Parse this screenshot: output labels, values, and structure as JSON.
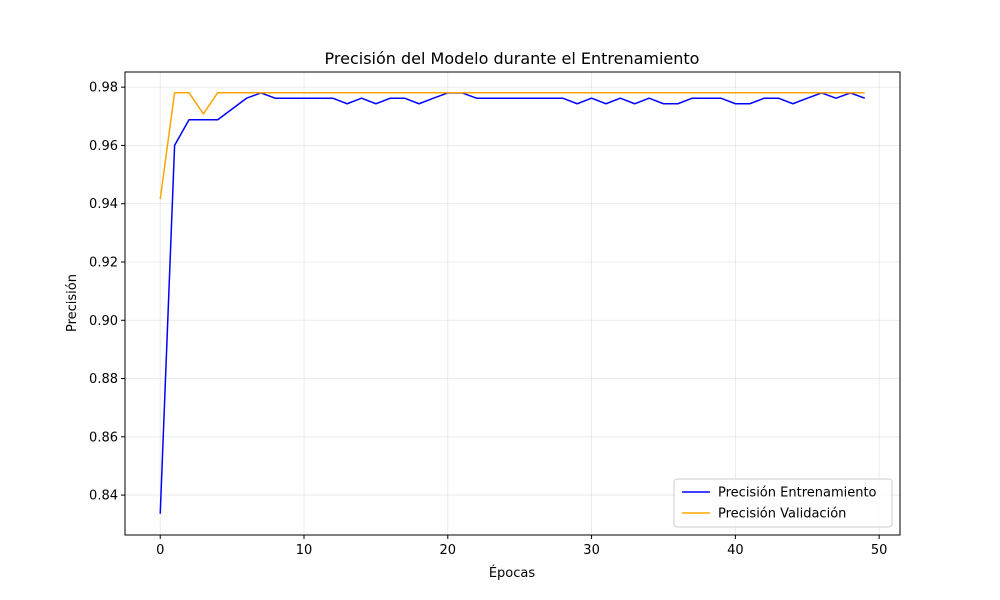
{
  "chart_data": {
    "type": "line",
    "title": "Precisión del Modelo durante el Entrenamiento",
    "xlabel": "Épocas",
    "ylabel": "Precisión",
    "xlim": [
      -2.45,
      51.45
    ],
    "ylim": [
      0.8263,
      0.9852
    ],
    "xticks": [
      0,
      10,
      20,
      30,
      40,
      50
    ],
    "yticks": [
      0.84,
      0.86,
      0.88,
      0.9,
      0.92,
      0.94,
      0.96,
      0.98
    ],
    "xtick_labels": [
      "0",
      "10",
      "20",
      "30",
      "40",
      "50"
    ],
    "ytick_labels": [
      "0.84",
      "0.86",
      "0.88",
      "0.90",
      "0.92",
      "0.94",
      "0.96",
      "0.98"
    ],
    "grid": true,
    "legend_position": "lower-right",
    "x": [
      0,
      1,
      2,
      3,
      4,
      5,
      6,
      7,
      8,
      9,
      10,
      11,
      12,
      13,
      14,
      15,
      16,
      17,
      18,
      19,
      20,
      21,
      22,
      23,
      24,
      25,
      26,
      27,
      28,
      29,
      30,
      31,
      32,
      33,
      34,
      35,
      36,
      37,
      38,
      39,
      40,
      41,
      42,
      43,
      44,
      45,
      46,
      47,
      48,
      49
    ],
    "series": [
      {
        "name": "Precisión Entrenamiento",
        "color": "#0000ff",
        "values": [
          0.8336,
          0.96,
          0.9688,
          0.9688,
          0.9688,
          0.9725,
          0.9762,
          0.978,
          0.9762,
          0.9762,
          0.9762,
          0.9762,
          0.9762,
          0.9743,
          0.9762,
          0.9743,
          0.9762,
          0.9762,
          0.9743,
          0.9762,
          0.978,
          0.978,
          0.9762,
          0.9762,
          0.9762,
          0.9762,
          0.9762,
          0.9762,
          0.9762,
          0.9743,
          0.9762,
          0.9743,
          0.9762,
          0.9743,
          0.9762,
          0.9743,
          0.9743,
          0.9762,
          0.9762,
          0.9762,
          0.9743,
          0.9743,
          0.9762,
          0.9762,
          0.9743,
          0.9762,
          0.978,
          0.9762,
          0.978,
          0.9762
        ]
      },
      {
        "name": "Precisión Validación",
        "color": "#ffa500",
        "values": [
          0.9416,
          0.9781,
          0.9781,
          0.9708,
          0.9781,
          0.9781,
          0.9781,
          0.9781,
          0.9781,
          0.9781,
          0.9781,
          0.9781,
          0.9781,
          0.9781,
          0.9781,
          0.9781,
          0.9781,
          0.9781,
          0.9781,
          0.9781,
          0.9781,
          0.9781,
          0.9781,
          0.9781,
          0.9781,
          0.9781,
          0.9781,
          0.9781,
          0.9781,
          0.9781,
          0.9781,
          0.9781,
          0.9781,
          0.9781,
          0.9781,
          0.9781,
          0.9781,
          0.9781,
          0.9781,
          0.9781,
          0.9781,
          0.9781,
          0.9781,
          0.9781,
          0.9781,
          0.9781,
          0.9781,
          0.9781,
          0.9781,
          0.9781
        ]
      }
    ]
  }
}
